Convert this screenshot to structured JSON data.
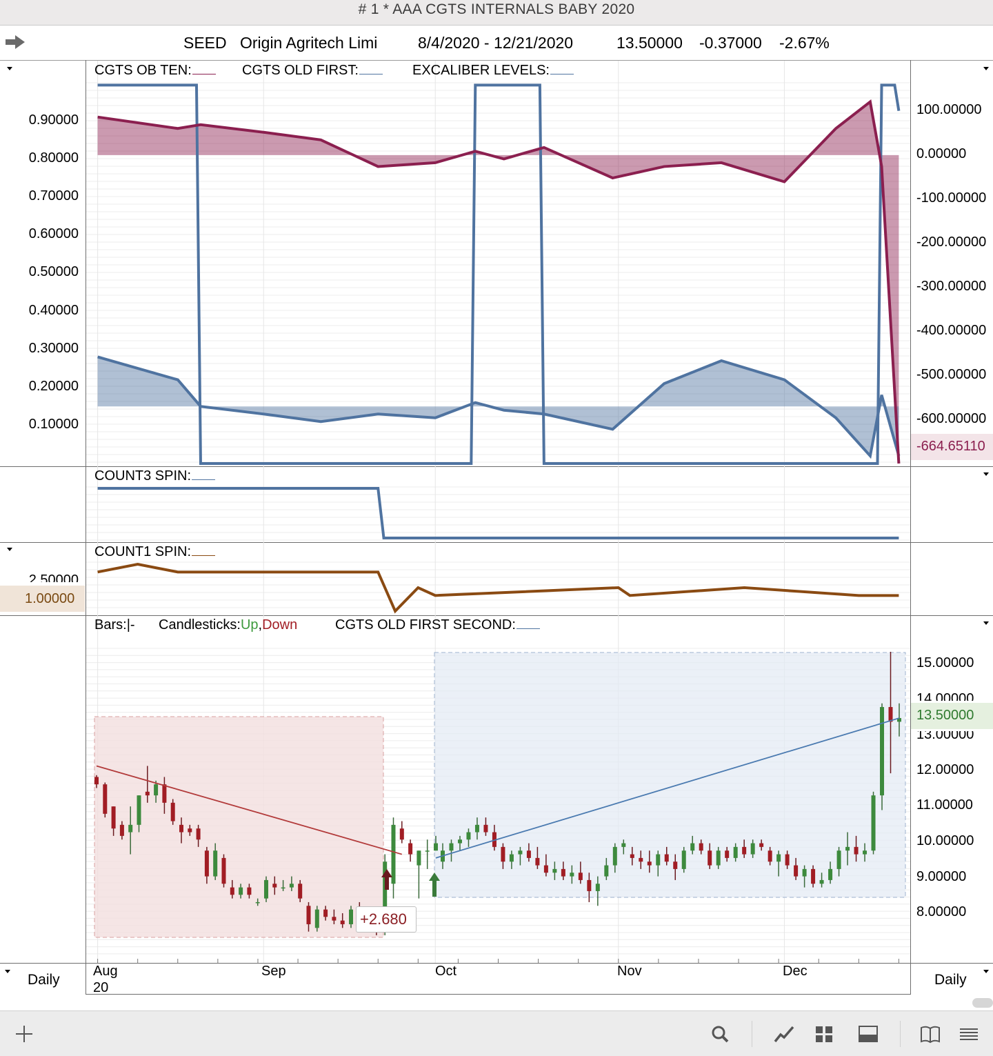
{
  "window": {
    "title": "# 1 * AAA  CGTS INTERNALS BABY 2020"
  },
  "symbol_bar": {
    "ticker": "SEED",
    "name": "Origin Agritech Limi",
    "date_range": "8/4/2020 - 12/21/2020",
    "last": "13.50000",
    "change": "-0.37000",
    "change_pct": "-2.67%"
  },
  "panes": {
    "internals": {
      "legend": [
        "CGTS OB TEN:",
        "CGTS OLD FIRST:",
        "EXCALIBER LEVELS:"
      ],
      "left_ticks": [
        "0.90000",
        "0.80000",
        "0.70000",
        "0.60000",
        "0.50000",
        "0.40000",
        "0.30000",
        "0.20000",
        "0.10000"
      ],
      "right_ticks": [
        "100.00000",
        "0.00000",
        "-100.00000",
        "-200.00000",
        "-300.00000",
        "-400.00000",
        "-500.00000",
        "-600.00000"
      ],
      "right_current": "-664.65110"
    },
    "count3": {
      "legend": "COUNT3 SPIN:"
    },
    "count1": {
      "legend": "COUNT1 SPIN:",
      "left_tick": "2.50000",
      "left_current": "1.00000"
    },
    "price": {
      "legend_bars": "Bars:",
      "legend_bars_symbol": "|-",
      "legend_candles": "Candlesticks:",
      "legend_up": "Up",
      "legend_sep": ",",
      "legend_down": "Down",
      "legend_study": "CGTS OLD FIRST SECOND:",
      "right_ticks": [
        "15.00000",
        "14.00000",
        "13.00000",
        "12.00000",
        "11.00000",
        "10.00000",
        "9.00000",
        "8.00000"
      ],
      "current": "13.50000",
      "annotation": "+2.680"
    }
  },
  "x_axis": {
    "months": [
      "Aug",
      "Sep",
      "Oct",
      "Nov",
      "Dec"
    ],
    "year": "20"
  },
  "periodicity": {
    "left": "Daily",
    "right": "Daily"
  },
  "colors": {
    "maroon": "#8b1f4f",
    "steel_blue": "#4f73a0",
    "brown": "#8a4a12",
    "up": "#3d8a3d",
    "down": "#a11d24"
  },
  "toolbar": {
    "icons": [
      "add-icon",
      "search-icon",
      "line-chart-icon",
      "grid-icon",
      "window-icon",
      "book-icon",
      "list-icon"
    ]
  },
  "chart_data": [
    {
      "type": "line",
      "title": "CGTS INTERNALS",
      "xlabel": "",
      "ylabel": "",
      "x": [
        "2020-08-03",
        "2020-08-17",
        "2020-08-21",
        "2020-09-01",
        "2020-09-11",
        "2020-09-21",
        "2020-10-01",
        "2020-10-08",
        "2020-10-13",
        "2020-10-20",
        "2020-11-01",
        "2020-11-10",
        "2020-11-20",
        "2020-12-01",
        "2020-12-10",
        "2020-12-16",
        "2020-12-18",
        "2020-12-21"
      ],
      "ylim_left": [
        0,
        1.0
      ],
      "ylim_right": [
        -665,
        150
      ],
      "series": [
        {
          "name": "CGTS OB TEN",
          "axis": "left",
          "values": [
            0.91,
            0.88,
            0.89,
            0.87,
            0.85,
            0.78,
            0.79,
            0.82,
            0.8,
            0.83,
            0.75,
            0.78,
            0.79,
            0.74,
            0.88,
            0.95,
            0.78,
            0.0
          ]
        },
        {
          "name": "CGTS OLD FIRST",
          "axis": "left",
          "values": [
            0.28,
            0.22,
            0.15,
            0.13,
            0.11,
            0.13,
            0.12,
            0.16,
            0.14,
            0.13,
            0.09,
            0.21,
            0.27,
            0.22,
            0.12,
            0.02,
            0.18,
            0.02
          ]
        },
        {
          "name": "EXCALIBER LEVELS",
          "axis": "right",
          "values": [
            145,
            145,
            -665,
            -665,
            -665,
            -665,
            -665,
            145,
            145,
            -665,
            -665,
            -665,
            -665,
            -665,
            -665,
            -665,
            145,
            90
          ]
        }
      ]
    },
    {
      "type": "line",
      "title": "COUNT3 SPIN",
      "x": [
        "2020-08-03",
        "2020-09-21",
        "2020-09-22",
        "2020-12-21"
      ],
      "series": [
        {
          "name": "COUNT3 SPIN",
          "values": [
            1,
            1,
            0,
            0
          ]
        }
      ]
    },
    {
      "type": "line",
      "title": "COUNT1 SPIN",
      "x": [
        "2020-08-03",
        "2020-08-10",
        "2020-08-17",
        "2020-09-21",
        "2020-09-24",
        "2020-09-28",
        "2020-10-01",
        "2020-11-02",
        "2020-11-04",
        "2020-11-24",
        "2020-12-14",
        "2020-12-21"
      ],
      "series": [
        {
          "name": "COUNT1 SPIN",
          "values": [
            2.5,
            3.0,
            2.5,
            2.5,
            0,
            1.5,
            1.0,
            1.5,
            1.0,
            1.5,
            1.0,
            1.0
          ]
        }
      ]
    },
    {
      "type": "candlestick",
      "title": "SEED Daily",
      "ylim": [
        7.0,
        15.5
      ],
      "annotation": "+2.680",
      "candles": [
        {
          "d": "8/04",
          "o": 11.9,
          "h": 11.95,
          "l": 11.6,
          "c": 11.7
        },
        {
          "d": "8/05",
          "o": 11.7,
          "h": 11.75,
          "l": 10.8,
          "c": 10.9
        },
        {
          "d": "8/06",
          "o": 11.1,
          "h": 11.1,
          "l": 10.3,
          "c": 10.5
        },
        {
          "d": "8/07",
          "o": 10.6,
          "h": 10.7,
          "l": 10.2,
          "c": 10.3
        },
        {
          "d": "8/10",
          "o": 10.4,
          "h": 11.1,
          "l": 9.8,
          "c": 10.6
        },
        {
          "d": "8/11",
          "o": 10.6,
          "h": 11.4,
          "l": 10.4,
          "c": 11.4
        },
        {
          "d": "8/12",
          "o": 11.5,
          "h": 12.2,
          "l": 11.2,
          "c": 11.4
        },
        {
          "d": "8/13",
          "o": 11.4,
          "h": 11.8,
          "l": 11.2,
          "c": 11.7
        },
        {
          "d": "8/14",
          "o": 11.7,
          "h": 11.9,
          "l": 10.9,
          "c": 11.2
        },
        {
          "d": "8/17",
          "o": 11.2,
          "h": 11.3,
          "l": 10.6,
          "c": 10.7
        },
        {
          "d": "8/18",
          "o": 10.6,
          "h": 10.8,
          "l": 10.1,
          "c": 10.4
        },
        {
          "d": "8/19",
          "o": 10.5,
          "h": 10.6,
          "l": 10.3,
          "c": 10.4
        },
        {
          "d": "8/20",
          "o": 10.5,
          "h": 10.6,
          "l": 10.0,
          "c": 10.2
        },
        {
          "d": "8/21",
          "o": 9.9,
          "h": 10.0,
          "l": 9.0,
          "c": 9.2
        },
        {
          "d": "8/24",
          "o": 9.2,
          "h": 10.1,
          "l": 9.1,
          "c": 9.9
        },
        {
          "d": "8/25",
          "o": 9.7,
          "h": 9.8,
          "l": 8.9,
          "c": 9.0
        },
        {
          "d": "8/26",
          "o": 8.9,
          "h": 9.1,
          "l": 8.6,
          "c": 8.7
        },
        {
          "d": "8/27",
          "o": 8.7,
          "h": 9.0,
          "l": 8.6,
          "c": 8.9
        },
        {
          "d": "8/28",
          "o": 8.9,
          "h": 9.0,
          "l": 8.6,
          "c": 8.7
        },
        {
          "d": "8/31",
          "o": 8.5,
          "h": 8.6,
          "l": 8.4,
          "c": 8.5
        },
        {
          "d": "9/01",
          "o": 8.6,
          "h": 9.2,
          "l": 8.5,
          "c": 9.1
        },
        {
          "d": "9/02",
          "o": 9.0,
          "h": 9.2,
          "l": 8.7,
          "c": 8.9
        },
        {
          "d": "9/03",
          "o": 8.9,
          "h": 9.1,
          "l": 8.8,
          "c": 8.9
        },
        {
          "d": "9/04",
          "o": 8.9,
          "h": 9.2,
          "l": 8.8,
          "c": 9.0
        },
        {
          "d": "9/08",
          "o": 9.0,
          "h": 9.1,
          "l": 8.5,
          "c": 8.6
        },
        {
          "d": "9/09",
          "o": 8.4,
          "h": 8.5,
          "l": 7.7,
          "c": 7.9
        },
        {
          "d": "9/10",
          "o": 7.8,
          "h": 8.4,
          "l": 7.7,
          "c": 8.3
        },
        {
          "d": "9/11",
          "o": 8.3,
          "h": 8.4,
          "l": 8.0,
          "c": 8.1
        },
        {
          "d": "9/14",
          "o": 8.1,
          "h": 8.3,
          "l": 7.9,
          "c": 8.0
        },
        {
          "d": "9/15",
          "o": 8.0,
          "h": 8.2,
          "l": 7.8,
          "c": 7.9
        },
        {
          "d": "9/16",
          "o": 7.9,
          "h": 8.4,
          "l": 7.8,
          "c": 8.3
        },
        {
          "d": "9/17",
          "o": 8.3,
          "h": 8.5,
          "l": 8.0,
          "c": 8.1
        },
        {
          "d": "9/18",
          "o": 8.1,
          "h": 8.2,
          "l": 7.8,
          "c": 7.9
        },
        {
          "d": "9/21",
          "o": 7.9,
          "h": 8.0,
          "l": 7.6,
          "c": 7.8
        },
        {
          "d": "9/22",
          "o": 7.8,
          "h": 9.8,
          "l": 7.6,
          "c": 9.6
        },
        {
          "d": "9/23",
          "o": 9.0,
          "h": 10.8,
          "l": 8.6,
          "c": 10.6
        },
        {
          "d": "9/24",
          "o": 10.5,
          "h": 10.7,
          "l": 10.1,
          "c": 10.2
        },
        {
          "d": "9/25",
          "o": 10.1,
          "h": 10.2,
          "l": 9.6,
          "c": 9.8
        },
        {
          "d": "9/28",
          "o": 9.5,
          "h": 9.9,
          "l": 8.6,
          "c": 9.9
        },
        {
          "d": "9/29",
          "o": 9.9,
          "h": 10.2,
          "l": 9.4,
          "c": 9.9
        },
        {
          "d": "9/30",
          "o": 9.9,
          "h": 10.3,
          "l": 9.9,
          "c": 10.1
        }
      ],
      "moving_averages": [
        {
          "name": "down-trend",
          "from": "8/04",
          "to": "9/24",
          "values": [
            12.2,
            9.8
          ]
        },
        {
          "name": "up-trend",
          "from": "9/30",
          "to": "12/21",
          "values": [
            9.7,
            13.5
          ]
        }
      ]
    }
  ]
}
